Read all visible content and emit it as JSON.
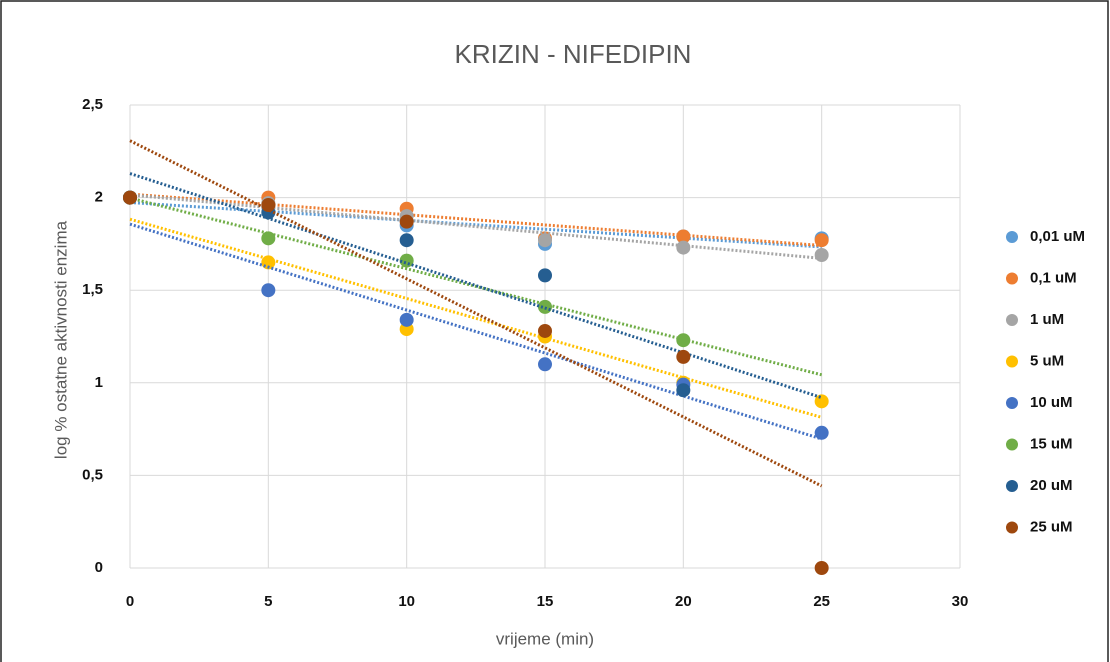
{
  "chart_data": {
    "type": "scatter",
    "title": "KRIZIN - NIFEDIPIN",
    "x_label": "vrijeme (min)",
    "y_label": "log % ostatne aktivnosti enzima",
    "x": [
      0,
      5,
      10,
      15,
      20,
      25
    ],
    "series": [
      {
        "name": "0,01 uM",
        "color": "#5b9bd5",
        "values": [
          2,
          1.95,
          1.85,
          1.75,
          1.79,
          1.78
        ]
      },
      {
        "name": "0,1 uM",
        "color": "#ed7d31",
        "values": [
          2,
          2.0,
          1.94,
          1.78,
          1.79,
          1.77
        ]
      },
      {
        "name": "1 uM",
        "color": "#a5a5a5",
        "values": [
          2,
          1.97,
          1.9,
          1.77,
          1.73,
          1.69
        ]
      },
      {
        "name": " 5 uM",
        "color": "#ffc000",
        "values": [
          2,
          1.65,
          1.29,
          1.25,
          1.0,
          0.9
        ]
      },
      {
        "name": "10 uM",
        "color": "#4472c4",
        "values": [
          2,
          1.5,
          1.34,
          1.1,
          0.99,
          0.73
        ]
      },
      {
        "name": "15 uM",
        "color": "#70ad47",
        "values": [
          2,
          1.78,
          1.66,
          1.41,
          1.23,
          null
        ]
      },
      {
        "name": "20 uM",
        "color": "#255e91",
        "values": [
          2,
          1.92,
          1.77,
          1.58,
          0.96,
          null
        ]
      },
      {
        "name": "25 uM",
        "color": "#9e480e",
        "values": [
          2,
          1.96,
          1.87,
          1.28,
          1.14,
          0
        ]
      }
    ],
    "xlim": [
      0,
      30
    ],
    "xticks": [
      0,
      5,
      10,
      15,
      20,
      25,
      30
    ],
    "ylim": [
      0,
      2.5
    ],
    "yticks": [
      0,
      {
        "value": 0.5,
        "label": "0,5"
      },
      1,
      {
        "value": 1.5,
        "label": "1,5"
      },
      2,
      {
        "value": 2.5,
        "label": "2,5"
      }
    ],
    "grid": true,
    "trendline": true,
    "legend": "right"
  }
}
